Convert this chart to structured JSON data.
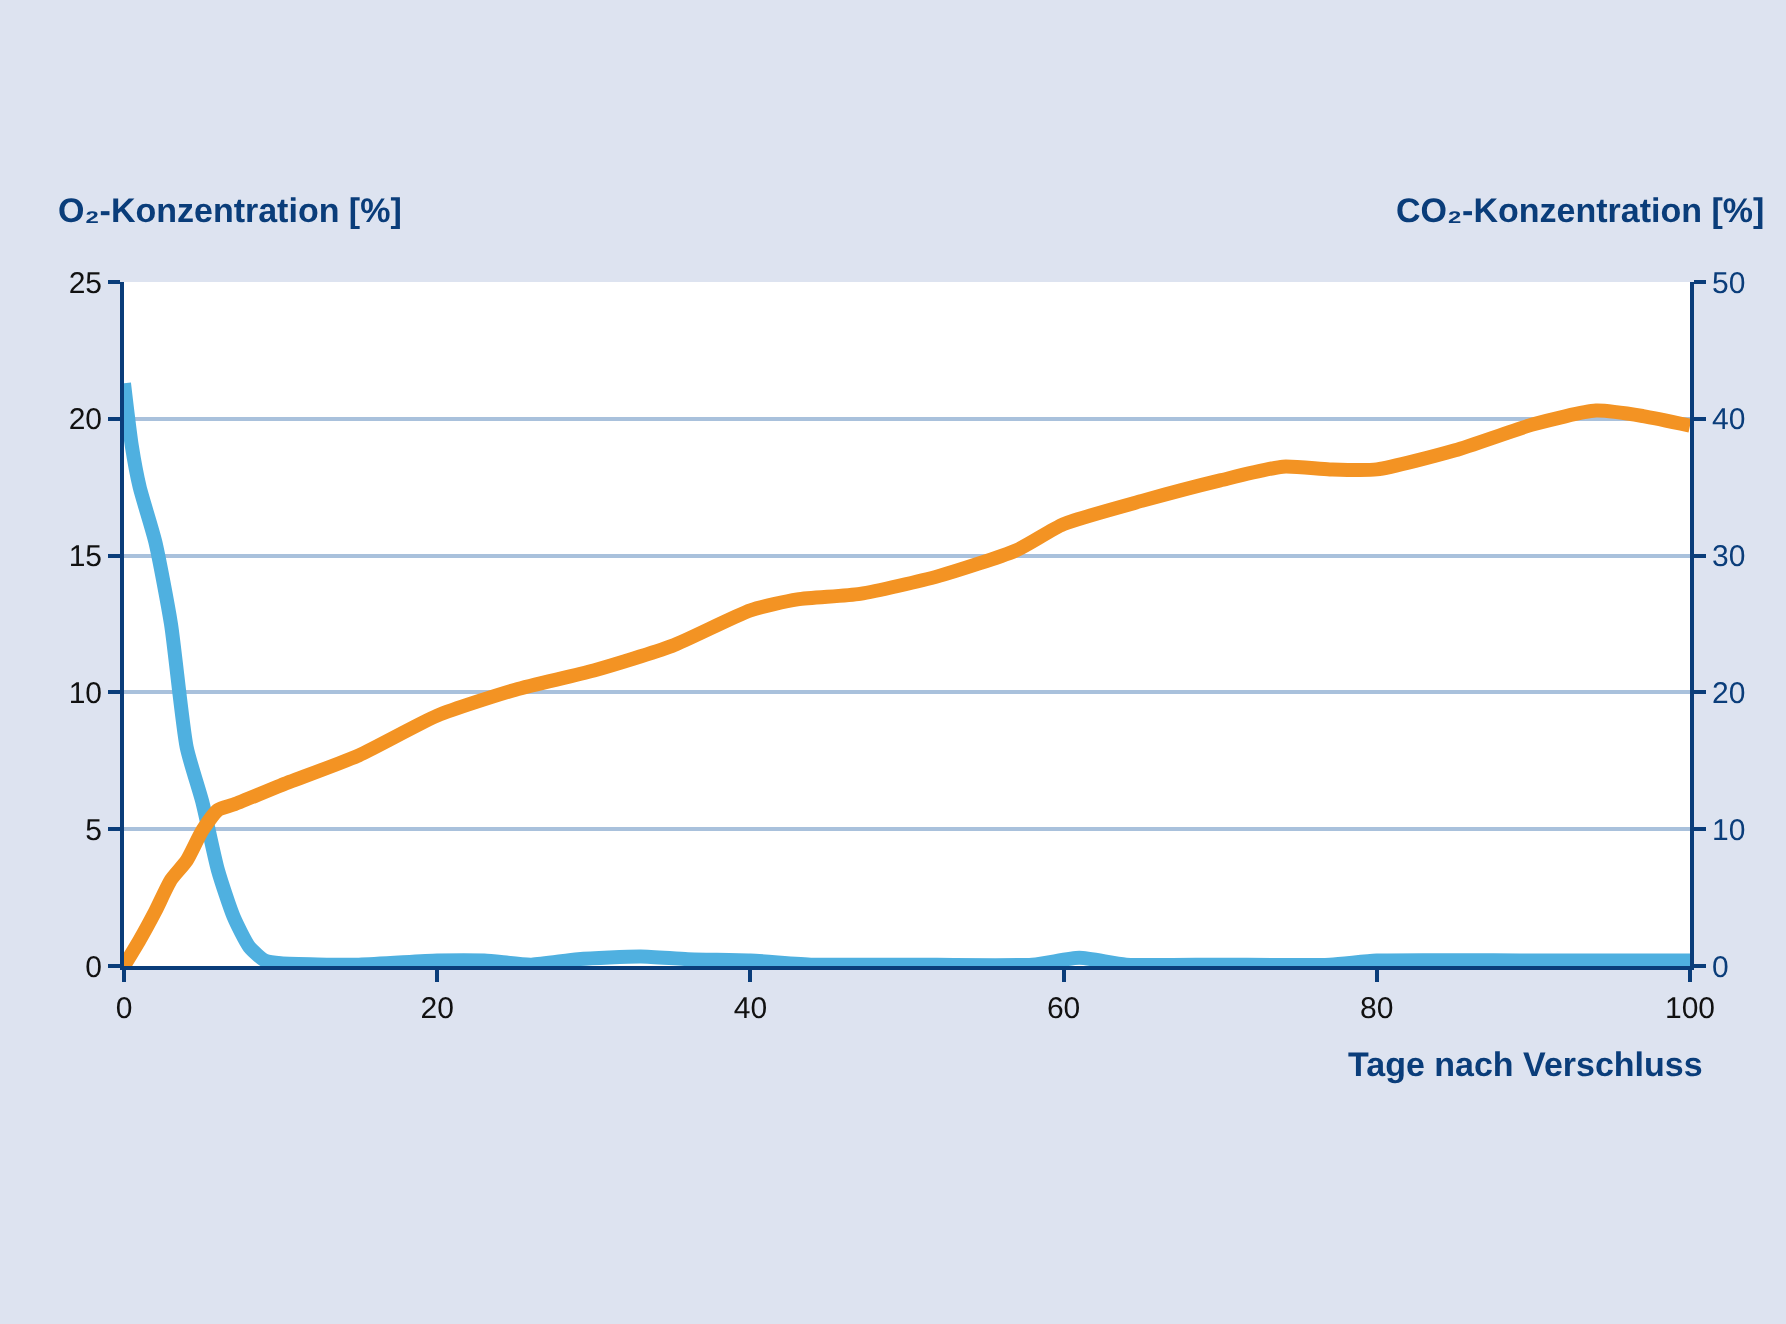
{
  "chart_data": {
    "type": "line",
    "ylabel": "O₂-Konzentration [%]",
    "y2label": "CO₂-Konzentration [%]",
    "xlabel": "Tage nach Verschluss",
    "xlim": [
      0,
      100
    ],
    "xticks": [
      0,
      20,
      40,
      60,
      80,
      100
    ],
    "ylim": [
      0,
      25
    ],
    "yticks": [
      0,
      5,
      10,
      15,
      20,
      25
    ],
    "y2lim": [
      0,
      50
    ],
    "y2ticks": [
      0,
      10,
      20,
      30,
      40,
      50
    ],
    "grid": "y",
    "marker": "none",
    "line_style": "solid",
    "series": [
      {
        "color": "#4fb0e0",
        "x": [
          0,
          0.5,
          1,
          2,
          3,
          4,
          5,
          6,
          7,
          8,
          9,
          10,
          15,
          20,
          23,
          26,
          29,
          33,
          36,
          40,
          44,
          50,
          58,
          61,
          64,
          70,
          77,
          80,
          90,
          100
        ],
        "values": [
          21.3,
          19,
          17.5,
          15.5,
          12.5,
          8,
          6,
          3.5,
          1.8,
          0.7,
          0.2,
          0.1,
          0.05,
          0.2,
          0.2,
          0.05,
          0.25,
          0.35,
          0.25,
          0.2,
          0.05,
          0.05,
          0.05,
          0.3,
          0.05,
          0.05,
          0.05,
          0.2,
          0.2,
          0.2
        ]
      },
      {
        "color": "#f39323",
        "axis": "y2",
        "x": [
          0,
          1,
          2,
          3,
          4,
          5,
          6,
          7,
          10,
          15,
          20,
          25,
          30,
          35,
          40,
          43,
          47,
          52,
          57,
          60,
          65,
          70,
          74,
          77,
          80,
          85,
          90,
          94,
          97,
          100
        ],
        "values": [
          0,
          1.9,
          4,
          6.3,
          7.7,
          9.9,
          11.4,
          11.8,
          13.2,
          15.4,
          18.3,
          20.2,
          21.6,
          23.4,
          26,
          26.8,
          27.2,
          28.5,
          30.4,
          32.3,
          34,
          35.5,
          36.5,
          36.3,
          36.3,
          37.7,
          39.6,
          40.6,
          40.2,
          39.5
        ]
      }
    ]
  }
}
